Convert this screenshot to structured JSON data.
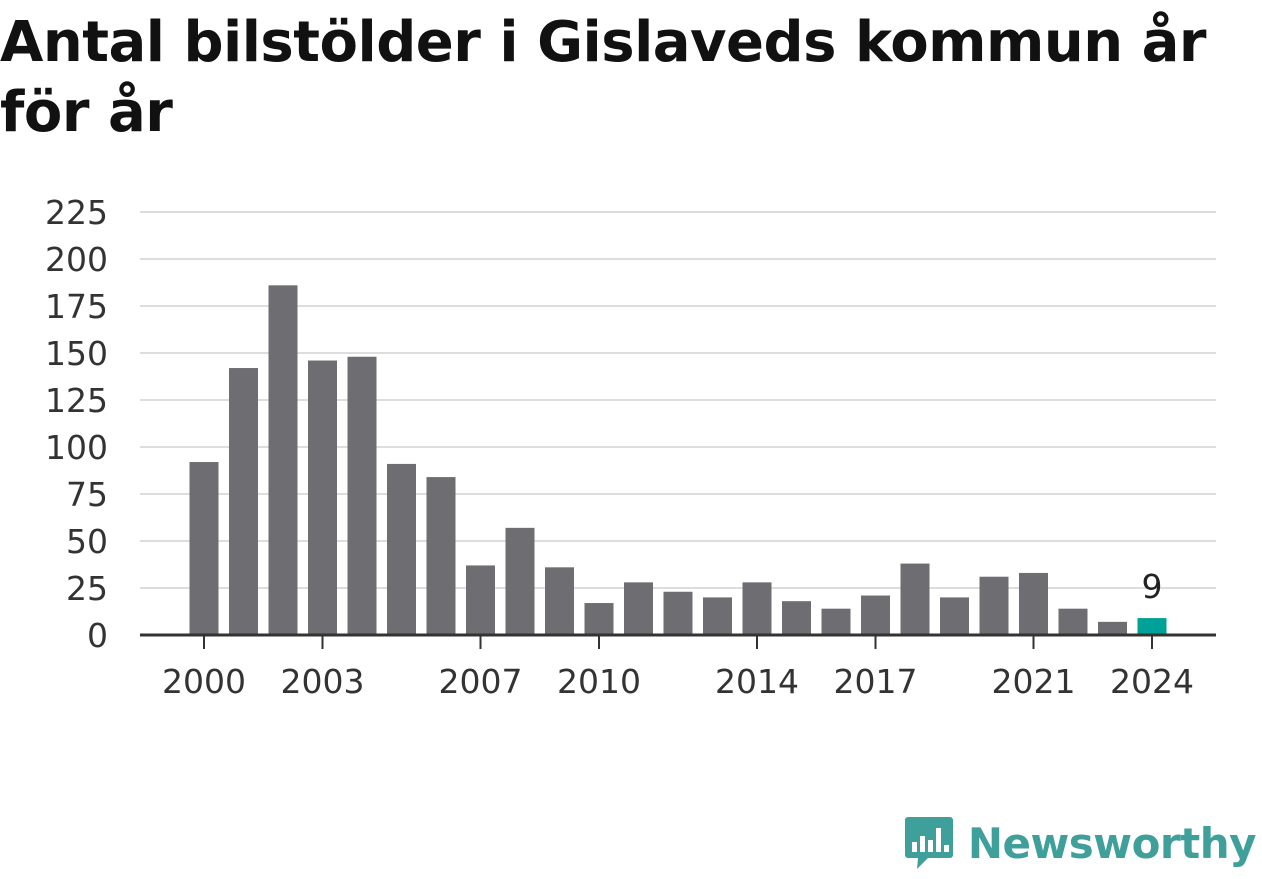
{
  "header": {
    "title": "Antal bilstölder i Gislaveds kommun år för år"
  },
  "brand": {
    "name": "Newsworthy",
    "icon": "bar-chart-speech-bubble-icon",
    "color": "#3f9f9a"
  },
  "colors": {
    "bar": "#6e6d72",
    "highlight": "#00a196",
    "grid": "#dddddd",
    "axis": "#333333"
  },
  "chart_data": {
    "type": "bar",
    "title": "Antal bilstölder i Gislaveds kommun år för år",
    "xlabel": "",
    "ylabel": "",
    "ylim": [
      0,
      225
    ],
    "yticks": [
      0,
      25,
      50,
      75,
      100,
      125,
      150,
      175,
      200,
      225
    ],
    "categories": [
      2000,
      2001,
      2002,
      2003,
      2004,
      2005,
      2006,
      2007,
      2008,
      2009,
      2010,
      2011,
      2012,
      2013,
      2014,
      2015,
      2016,
      2017,
      2018,
      2019,
      2020,
      2021,
      2022,
      2023,
      2024
    ],
    "values": [
      92,
      142,
      186,
      146,
      148,
      91,
      84,
      37,
      57,
      36,
      17,
      28,
      23,
      20,
      28,
      18,
      14,
      21,
      38,
      20,
      31,
      33,
      14,
      7,
      9
    ],
    "xtick_labels": [
      2000,
      2003,
      2007,
      2010,
      2014,
      2017,
      2021,
      2024
    ],
    "highlight": {
      "category": 2024,
      "label": "9"
    },
    "grid": true,
    "legend": "none"
  }
}
